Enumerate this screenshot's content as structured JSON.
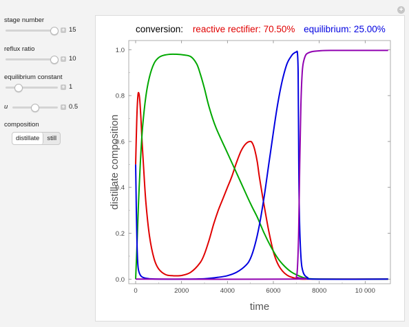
{
  "controls": {
    "stage_number": {
      "label": "stage number",
      "value": "15",
      "fraction": 0.93
    },
    "reflux_ratio": {
      "label": "reflux ratio",
      "value": "10",
      "fraction": 0.93
    },
    "equilibrium_constant": {
      "label": "equilibrium constant",
      "value": "1",
      "fraction": 0.25
    },
    "u": {
      "label": "u",
      "value": "0.5",
      "fraction": 0.5
    },
    "composition": {
      "label": "composition",
      "options": [
        "distillate",
        "still"
      ],
      "selected": "distillate"
    }
  },
  "plot_title": {
    "prefix": "conversion:",
    "reactive": "reactive rectifier: 70.50%",
    "equilibrium": "equilibrium: 25.00%"
  },
  "colors": {
    "red": "#e00000",
    "green": "#00a800",
    "blue": "#0000e0",
    "purple": "#9000b0"
  },
  "chart_data": {
    "type": "line",
    "xlabel": "time",
    "ylabel": "distillate   composition",
    "xlim": [
      -300,
      11100
    ],
    "ylim": [
      -0.02,
      1.04
    ],
    "xticks": [
      0,
      2000,
      4000,
      6000,
      8000,
      10000
    ],
    "xtick_labels": [
      "0",
      "2000",
      "4000",
      "6000",
      "8000",
      "10 000"
    ],
    "yticks": [
      0.0,
      0.2,
      0.4,
      0.6,
      0.8,
      1.0
    ],
    "ytick_labels": [
      "0.0",
      "0.2",
      "0.4",
      "0.6",
      "0.8",
      "1.0"
    ],
    "grid": false,
    "series": [
      {
        "color": "red",
        "x": [
          0,
          50,
          100,
          140,
          180,
          230,
          280,
          350,
          450,
          600,
          800,
          1000,
          1300,
          1600,
          2000,
          2400,
          2800,
          3000,
          3200,
          3400,
          3600,
          3800,
          4000,
          4200,
          4400,
          4600,
          4800,
          5000,
          5100,
          5200,
          5300,
          5400,
          5600,
          5800,
          6000,
          6200,
          6400,
          6600,
          6800,
          7000,
          7200,
          7500,
          8000,
          11000
        ],
        "y": [
          0.5,
          0.7,
          0.8,
          0.81,
          0.78,
          0.7,
          0.6,
          0.48,
          0.33,
          0.19,
          0.09,
          0.045,
          0.02,
          0.015,
          0.016,
          0.03,
          0.07,
          0.11,
          0.17,
          0.24,
          0.3,
          0.35,
          0.4,
          0.45,
          0.51,
          0.56,
          0.59,
          0.6,
          0.59,
          0.56,
          0.51,
          0.44,
          0.32,
          0.21,
          0.12,
          0.065,
          0.035,
          0.017,
          0.008,
          0.003,
          0.0,
          0.0,
          0.0,
          0.0
        ]
      },
      {
        "color": "green",
        "x": [
          0,
          60,
          120,
          200,
          300,
          450,
          600,
          800,
          1000,
          1200,
          1500,
          1800,
          2100,
          2400,
          2650,
          2800,
          3000,
          3200,
          3500,
          4000,
          4500,
          5000,
          5300,
          5600,
          5900,
          6200,
          6500,
          6800,
          7100,
          7400,
          8000,
          11000
        ],
        "y": [
          0.0,
          0.15,
          0.32,
          0.5,
          0.66,
          0.8,
          0.88,
          0.94,
          0.965,
          0.975,
          0.98,
          0.98,
          0.977,
          0.97,
          0.94,
          0.9,
          0.83,
          0.75,
          0.66,
          0.55,
          0.44,
          0.33,
          0.27,
          0.2,
          0.14,
          0.09,
          0.055,
          0.03,
          0.015,
          0.005,
          0.0,
          0.0
        ]
      },
      {
        "color": "blue",
        "x": [
          0,
          30,
          60,
          100,
          150,
          250,
          400,
          600,
          1000,
          2000,
          3000,
          3600,
          4000,
          4400,
          4800,
          5000,
          5200,
          5400,
          5600,
          5800,
          6000,
          6200,
          6400,
          6600,
          6800,
          6900,
          7000,
          7050,
          7080,
          7100,
          7130,
          7200,
          7300,
          7500,
          7800,
          11000
        ],
        "y": [
          0.5,
          0.3,
          0.15,
          0.06,
          0.03,
          0.012,
          0.005,
          0.002,
          0.0,
          0.0,
          0.002,
          0.008,
          0.015,
          0.03,
          0.06,
          0.09,
          0.15,
          0.24,
          0.36,
          0.5,
          0.64,
          0.77,
          0.87,
          0.94,
          0.975,
          0.985,
          0.99,
          0.985,
          0.9,
          0.6,
          0.3,
          0.1,
          0.03,
          0.006,
          0.0,
          0.0
        ]
      },
      {
        "color": "purple",
        "x": [
          0,
          6900,
          7000,
          7050,
          7100,
          7150,
          7200,
          7250,
          7300,
          7400,
          7500,
          7700,
          8000,
          8500,
          11000
        ],
        "y": [
          0.0,
          0.0,
          0.01,
          0.05,
          0.2,
          0.5,
          0.76,
          0.89,
          0.94,
          0.975,
          0.985,
          0.992,
          0.995,
          0.997,
          0.997
        ]
      }
    ]
  }
}
